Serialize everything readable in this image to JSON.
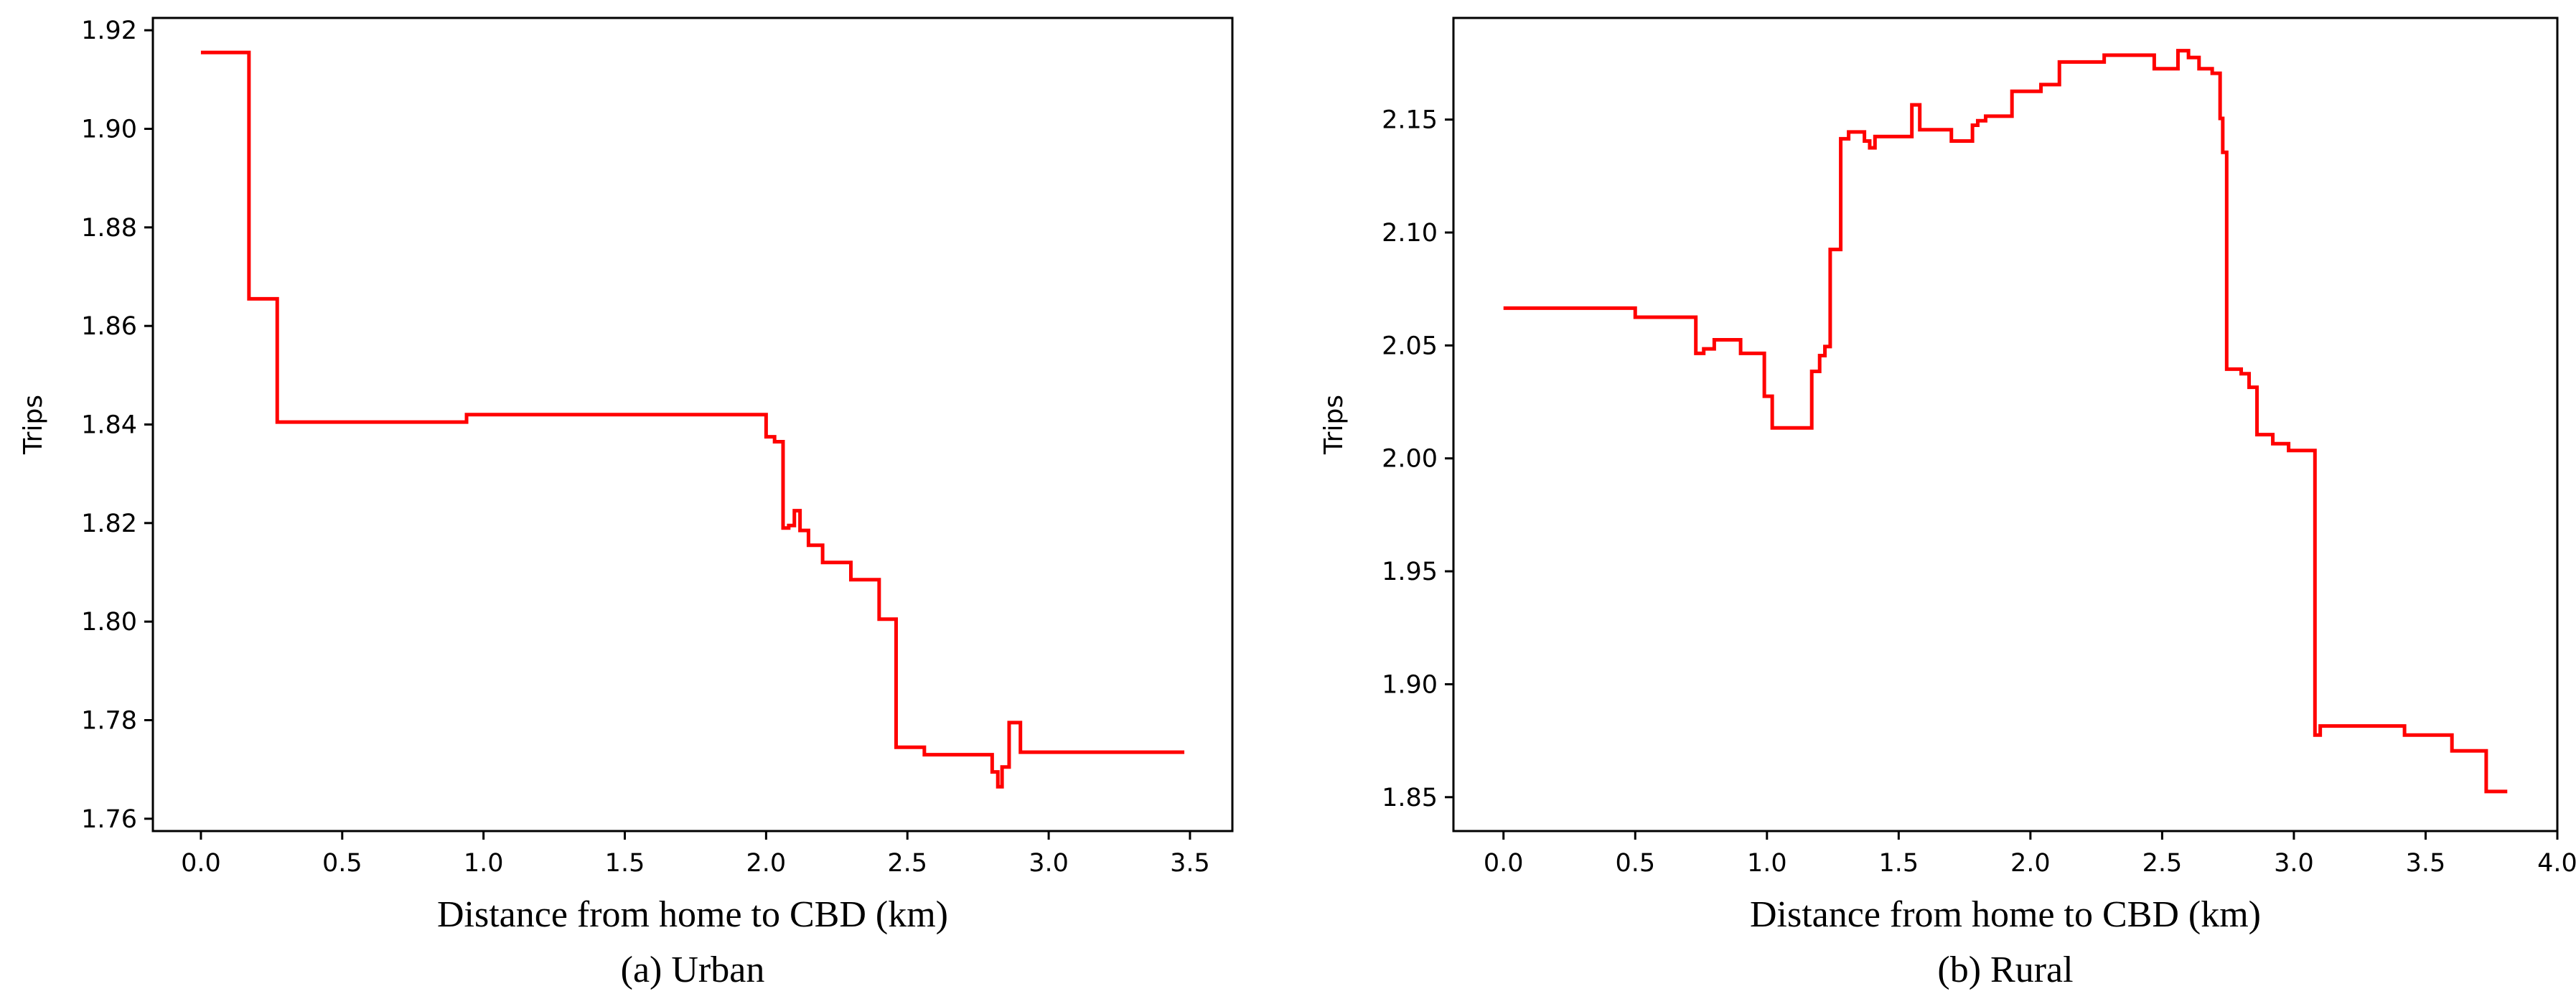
{
  "chart_data": [
    {
      "type": "line",
      "caption": "(a) Urban",
      "xlabel": "Distance from home to CBD (km)",
      "ylabel": "Trips",
      "xlim": [
        -0.17,
        3.65
      ],
      "ylim": [
        1.7575,
        1.9225
      ],
      "xticks": [
        0.0,
        0.5,
        1.0,
        1.5,
        2.0,
        2.5,
        3.0,
        3.5
      ],
      "xtick_labels": [
        "0.0",
        "0.5",
        "1.0",
        "1.5",
        "2.0",
        "2.5",
        "3.0",
        "3.5"
      ],
      "yticks": [
        1.76,
        1.78,
        1.8,
        1.82,
        1.84,
        1.86,
        1.88,
        1.9,
        1.92
      ],
      "ytick_labels": [
        "1.76",
        "1.78",
        "1.80",
        "1.82",
        "1.84",
        "1.86",
        "1.88",
        "1.90",
        "1.92"
      ],
      "grid": false,
      "color": "#ff0000",
      "series": [
        {
          "name": "Urban",
          "x": [
            0.0,
            0.17,
            0.17,
            0.27,
            0.27,
            0.94,
            0.94,
            2.0,
            2.0,
            2.03,
            2.03,
            2.06,
            2.06,
            2.08,
            2.08,
            2.1,
            2.1,
            2.12,
            2.12,
            2.15,
            2.15,
            2.2,
            2.2,
            2.3,
            2.3,
            2.38,
            2.38,
            2.4,
            2.4,
            2.46,
            2.46,
            2.56,
            2.56,
            2.8,
            2.8,
            2.82,
            2.82,
            2.835,
            2.835,
            2.86,
            2.86,
            2.9,
            2.9,
            3.48
          ],
          "y": [
            1.9155,
            1.9155,
            1.8655,
            1.8655,
            1.8405,
            1.8405,
            1.842,
            1.842,
            1.8375,
            1.8375,
            1.8365,
            1.8365,
            1.819,
            1.819,
            1.8195,
            1.8195,
            1.8225,
            1.8225,
            1.8185,
            1.8185,
            1.8155,
            1.8155,
            1.812,
            1.812,
            1.8085,
            1.8085,
            1.8085,
            1.8085,
            1.8005,
            1.8005,
            1.7745,
            1.7745,
            1.773,
            1.773,
            1.7695,
            1.7695,
            1.7665,
            1.7665,
            1.7705,
            1.7705,
            1.7795,
            1.7795,
            1.7735,
            1.7735
          ]
        }
      ]
    },
    {
      "type": "line",
      "caption": "(b) Rural",
      "xlabel": "Distance from home to CBD (km)",
      "ylabel": "Trips",
      "xlim": [
        -0.19,
        4.0
      ],
      "ylim": [
        1.835,
        2.195
      ],
      "xticks": [
        0.0,
        0.5,
        1.0,
        1.5,
        2.0,
        2.5,
        3.0,
        3.5,
        4.0
      ],
      "xtick_labels": [
        "0.0",
        "0.5",
        "1.0",
        "1.5",
        "2.0",
        "2.5",
        "3.0",
        "3.5",
        "4.0"
      ],
      "yticks": [
        1.85,
        1.9,
        1.95,
        2.0,
        2.05,
        2.1,
        2.15
      ],
      "ytick_labels": [
        "1.85",
        "1.90",
        "1.95",
        "2.00",
        "2.05",
        "2.10",
        "2.15"
      ],
      "grid": false,
      "color": "#ff0000",
      "series": [
        {
          "name": "Rural",
          "x": [
            0.0,
            0.5,
            0.5,
            0.73,
            0.73,
            0.76,
            0.76,
            0.8,
            0.8,
            0.9,
            0.9,
            0.99,
            0.99,
            1.02,
            1.02,
            1.17,
            1.17,
            1.2,
            1.2,
            1.22,
            1.22,
            1.24,
            1.24,
            1.28,
            1.28,
            1.31,
            1.31,
            1.37,
            1.37,
            1.39,
            1.39,
            1.41,
            1.41,
            1.55,
            1.55,
            1.58,
            1.58,
            1.7,
            1.7,
            1.78,
            1.78,
            1.8,
            1.8,
            1.83,
            1.83,
            1.93,
            1.93,
            2.04,
            2.04,
            2.11,
            2.11,
            2.28,
            2.28,
            2.47,
            2.47,
            2.56,
            2.56,
            2.6,
            2.6,
            2.64,
            2.64,
            2.69,
            2.69,
            2.72,
            2.72,
            2.73,
            2.73,
            2.745,
            2.745,
            2.8,
            2.8,
            2.83,
            2.83,
            2.86,
            2.86,
            2.92,
            2.92,
            2.98,
            2.98,
            3.08,
            3.08,
            3.1,
            3.1,
            3.42,
            3.42,
            3.6,
            3.6,
            3.73,
            3.73,
            3.81
          ],
          "y": [
            2.0665,
            2.0665,
            2.0625,
            2.0625,
            2.0465,
            2.0465,
            2.0485,
            2.0485,
            2.0525,
            2.0525,
            2.0465,
            2.0465,
            2.0275,
            2.0275,
            2.0135,
            2.0135,
            2.0385,
            2.0385,
            2.0455,
            2.0455,
            2.0495,
            2.0495,
            2.0925,
            2.0925,
            2.1415,
            2.1415,
            2.1445,
            2.1445,
            2.1405,
            2.1405,
            2.1375,
            2.1375,
            2.1425,
            2.1425,
            2.1565,
            2.1565,
            2.1455,
            2.1455,
            2.1405,
            2.1405,
            2.1475,
            2.1475,
            2.1495,
            2.1495,
            2.1515,
            2.1515,
            2.1625,
            2.1625,
            2.1655,
            2.1655,
            2.1755,
            2.1755,
            2.1785,
            2.1785,
            2.1725,
            2.1725,
            2.1805,
            2.1805,
            2.1775,
            2.1775,
            2.1725,
            2.1725,
            2.1705,
            2.1705,
            2.1505,
            2.1505,
            2.1355,
            2.1355,
            2.0395,
            2.0395,
            2.0375,
            2.0375,
            2.0315,
            2.0315,
            2.0105,
            2.0105,
            2.0065,
            2.0065,
            2.0035,
            2.0035,
            1.8775,
            1.8775,
            1.8815,
            1.8815,
            1.8775,
            1.8775,
            1.8705,
            1.8705,
            1.8525,
            1.8525
          ]
        }
      ]
    }
  ]
}
